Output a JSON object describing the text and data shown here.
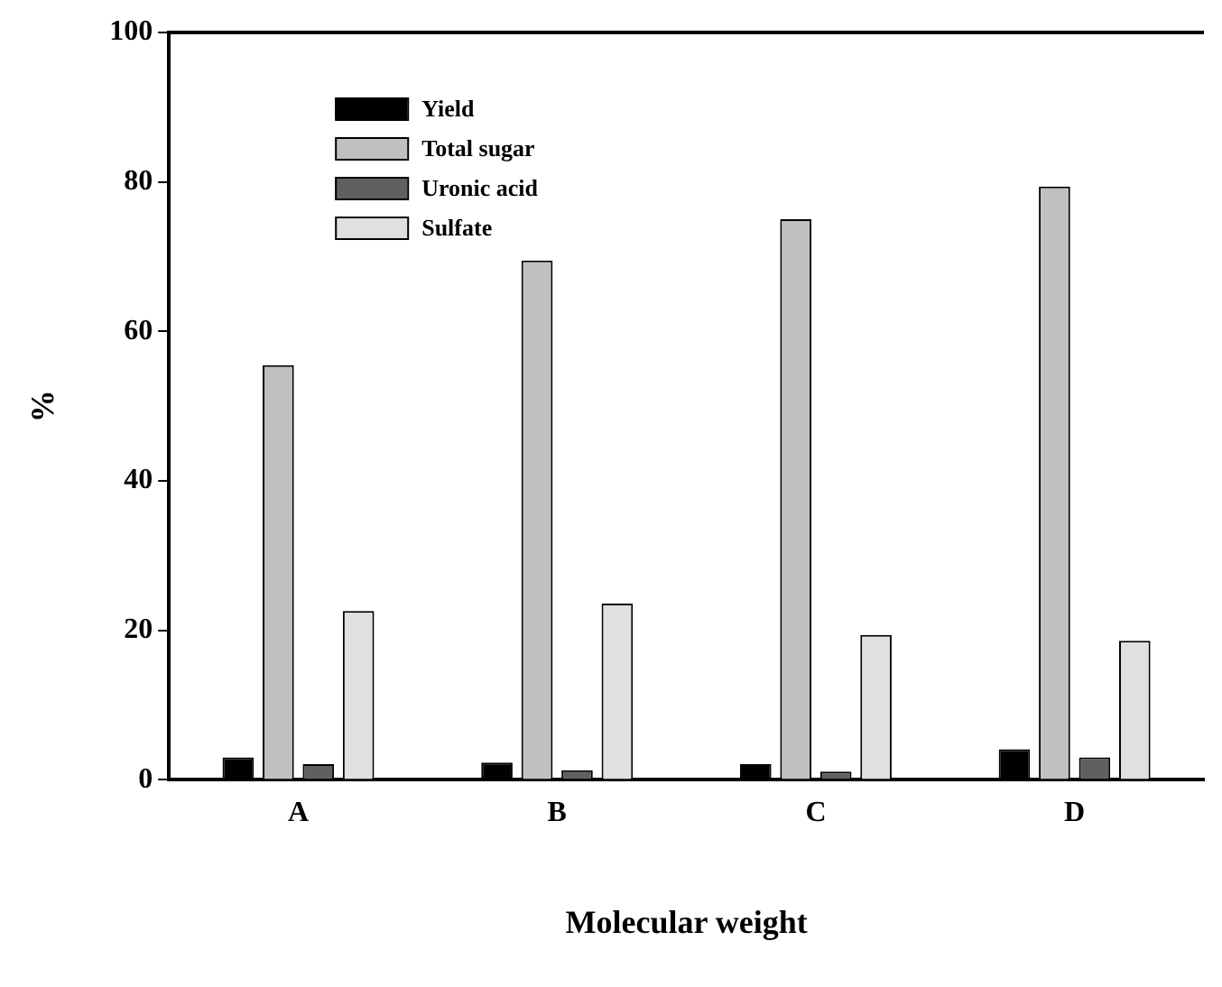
{
  "chart_data": {
    "type": "bar",
    "xlabel": "Molecular weight",
    "ylabel": "%",
    "categories": [
      "A",
      "B",
      "C",
      "D"
    ],
    "series": [
      {
        "name": "Yield",
        "color": "#000000",
        "values": [
          3.0,
          2.3,
          2.1,
          4.1
        ]
      },
      {
        "name": "Total sugar",
        "color": "#c0c0c0",
        "values": [
          55.5,
          69.5,
          75.0,
          79.4
        ]
      },
      {
        "name": "Uronic acid",
        "color": "#606060",
        "values": [
          2.1,
          1.3,
          1.1,
          3.0
        ]
      },
      {
        "name": "Sulfate",
        "color": "#e0e0e0",
        "values": [
          22.6,
          23.6,
          19.4,
          18.6
        ]
      }
    ],
    "ylim": [
      0,
      100
    ],
    "yticks": [
      0,
      20,
      40,
      60,
      80,
      100
    ],
    "grid": false,
    "legend": "top left"
  }
}
